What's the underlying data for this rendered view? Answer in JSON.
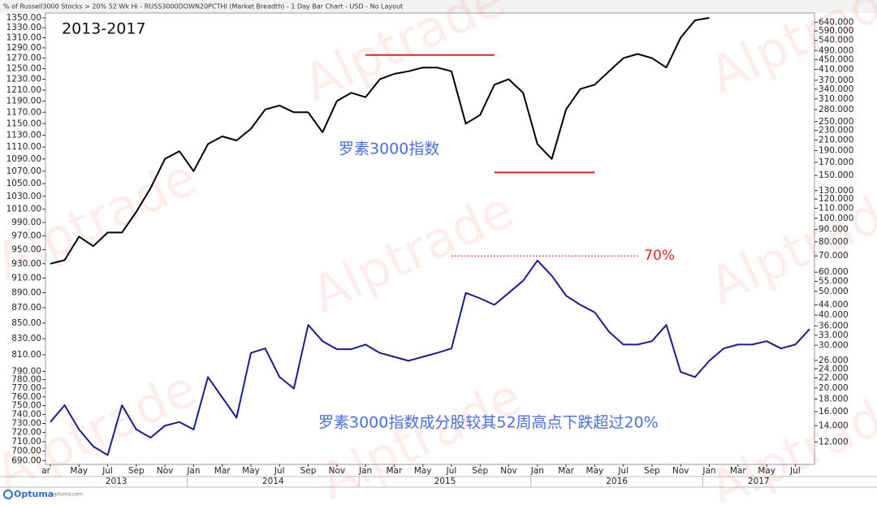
{
  "header": "% of Russell3000 Stocks > 20% 52 Wk Hi - RUSS3000DOWN20PCTHI (Market Breadth) - 1 Day Bar Chart - USD - No Layout",
  "watermark": "Alptrade",
  "footer": {
    "brand": "Optuma",
    "site": "optuma.com"
  },
  "chart_data": {
    "type": "line",
    "period_label": "2013-2017",
    "annotations": [
      "罗素3000指数",
      "罗素3000指数成分股较其52周高点下跌超过20%"
    ],
    "reference_lines": [
      {
        "axis": "y",
        "value": 1276,
        "from": "2015-01",
        "to": "2015-10",
        "color": "#e8201c"
      },
      {
        "axis": "y",
        "value": 1068,
        "from": "2015-10",
        "to": "2016-05",
        "color": "#e8201c"
      },
      {
        "axis": "y2",
        "value": 70,
        "from": "2015-07",
        "to": "2016-08",
        "color": "#e8201c",
        "label": "70%"
      }
    ],
    "x": [
      "2013-03",
      "2013-04",
      "2013-05",
      "2013-06",
      "2013-07",
      "2013-08",
      "2013-09",
      "2013-10",
      "2013-11",
      "2013-12",
      "2014-01",
      "2014-02",
      "2014-03",
      "2014-04",
      "2014-05",
      "2014-06",
      "2014-07",
      "2014-08",
      "2014-09",
      "2014-10",
      "2014-11",
      "2014-12",
      "2015-01",
      "2015-02",
      "2015-03",
      "2015-04",
      "2015-05",
      "2015-06",
      "2015-07",
      "2015-08",
      "2015-09",
      "2015-10",
      "2015-11",
      "2015-12",
      "2016-01",
      "2016-02",
      "2016-03",
      "2016-04",
      "2016-05",
      "2016-06",
      "2016-07",
      "2016-08",
      "2016-09",
      "2016-10",
      "2016-11",
      "2016-12",
      "2017-01",
      "2017-02",
      "2017-03",
      "2017-04",
      "2017-05",
      "2017-06",
      "2017-07",
      "2017-08"
    ],
    "xlim": [
      "2013-03",
      "2017-08"
    ],
    "xticks": [
      {
        "value": "2013-03",
        "label": "ar"
      },
      {
        "value": "2013-05",
        "label": "May"
      },
      {
        "value": "2013-07",
        "label": "Jul"
      },
      {
        "value": "2013-09",
        "label": "Sep"
      },
      {
        "value": "2013-11",
        "label": "Nov"
      },
      {
        "value": "2014-01",
        "label": "Jan"
      },
      {
        "value": "2014-03",
        "label": "Mar"
      },
      {
        "value": "2014-05",
        "label": "May"
      },
      {
        "value": "2014-07",
        "label": "Jul"
      },
      {
        "value": "2014-09",
        "label": "Sep"
      },
      {
        "value": "2014-11",
        "label": "Nov"
      },
      {
        "value": "2015-01",
        "label": "Jan"
      },
      {
        "value": "2015-03",
        "label": "Mar"
      },
      {
        "value": "2015-05",
        "label": "May"
      },
      {
        "value": "2015-07",
        "label": "Jul"
      },
      {
        "value": "2015-09",
        "label": "Sep"
      },
      {
        "value": "2015-11",
        "label": "Nov"
      },
      {
        "value": "2016-01",
        "label": "Jan"
      },
      {
        "value": "2016-03",
        "label": "Mar"
      },
      {
        "value": "2016-05",
        "label": "May"
      },
      {
        "value": "2016-07",
        "label": "Jul"
      },
      {
        "value": "2016-09",
        "label": "Sep"
      },
      {
        "value": "2016-11",
        "label": "Nov"
      },
      {
        "value": "2017-01",
        "label": "Jan"
      },
      {
        "value": "2017-03",
        "label": "Mar"
      },
      {
        "value": "2017-05",
        "label": "May"
      },
      {
        "value": "2017-07",
        "label": "Jul"
      }
    ],
    "years": [
      "2013",
      "2014",
      "2015",
      "2016",
      "2017"
    ],
    "log_scale": true,
    "ylim": [
      686,
      1360
    ],
    "yticks": [
      {
        "value": 690,
        "label": "690.00"
      },
      {
        "value": 700,
        "label": "700.00"
      },
      {
        "value": 710,
        "label": "710.00"
      },
      {
        "value": 720,
        "label": "720.00"
      },
      {
        "value": 730,
        "label": "730.00"
      },
      {
        "value": 740,
        "label": "740.00"
      },
      {
        "value": 750,
        "label": "750.00"
      },
      {
        "value": 760,
        "label": "760.00"
      },
      {
        "value": 770,
        "label": "770.00"
      },
      {
        "value": 780,
        "label": "780.00"
      },
      {
        "value": 790,
        "label": "790.00"
      },
      {
        "value": 810,
        "label": "810.00"
      },
      {
        "value": 830,
        "label": "830.00"
      },
      {
        "value": 850,
        "label": "850.00"
      },
      {
        "value": 870,
        "label": "870.00"
      },
      {
        "value": 890,
        "label": "890.00"
      },
      {
        "value": 910,
        "label": "910.00"
      },
      {
        "value": 930,
        "label": "930.00"
      },
      {
        "value": 950,
        "label": "950.00"
      },
      {
        "value": 970,
        "label": "970.00"
      },
      {
        "value": 990,
        "label": "990.00"
      },
      {
        "value": 1010,
        "label": "1010.00"
      },
      {
        "value": 1030,
        "label": "1030.00"
      },
      {
        "value": 1050,
        "label": "1050.00"
      },
      {
        "value": 1070,
        "label": "1070.00"
      },
      {
        "value": 1090,
        "label": "1090.00"
      },
      {
        "value": 1110,
        "label": "1110.00"
      },
      {
        "value": 1130,
        "label": "1130.00"
      },
      {
        "value": 1150,
        "label": "1150.00"
      },
      {
        "value": 1170,
        "label": "1170.00"
      },
      {
        "value": 1190,
        "label": "1190.00"
      },
      {
        "value": 1210,
        "label": "1210.00"
      },
      {
        "value": 1230,
        "label": "1230.00"
      },
      {
        "value": 1250,
        "label": "1250.00"
      },
      {
        "value": 1270,
        "label": "1270.00"
      },
      {
        "value": 1290,
        "label": "1290.00"
      },
      {
        "value": 1310,
        "label": "1310.00"
      },
      {
        "value": 1330,
        "label": "1330.00"
      },
      {
        "value": 1350,
        "label": "1350.00"
      }
    ],
    "y2lim": [
      9.7,
      700
    ],
    "y2ticks": [
      {
        "value": 12,
        "label": "12.000"
      },
      {
        "value": 14,
        "label": "14.000"
      },
      {
        "value": 16,
        "label": "16.000"
      },
      {
        "value": 18,
        "label": "18.000"
      },
      {
        "value": 20,
        "label": "20.000"
      },
      {
        "value": 22,
        "label": "22.000"
      },
      {
        "value": 24,
        "label": "24.000"
      },
      {
        "value": 26,
        "label": "26.000"
      },
      {
        "value": 30,
        "label": "30.000"
      },
      {
        "value": 33,
        "label": "33.000"
      },
      {
        "value": 36,
        "label": "36.000"
      },
      {
        "value": 40,
        "label": "40.000"
      },
      {
        "value": 44,
        "label": "44.000"
      },
      {
        "value": 50,
        "label": "50.000"
      },
      {
        "value": 55,
        "label": "55.000"
      },
      {
        "value": 60,
        "label": "60.000"
      },
      {
        "value": 70,
        "label": "70.000"
      },
      {
        "value": 80,
        "label": "80.000"
      },
      {
        "value": 90,
        "label": "90.000"
      },
      {
        "value": 100,
        "label": "100.000"
      },
      {
        "value": 110,
        "label": "110.000"
      },
      {
        "value": 120,
        "label": "120.000"
      },
      {
        "value": 130,
        "label": "130.000"
      },
      {
        "value": 150,
        "label": "150.000"
      },
      {
        "value": 170,
        "label": "170.000"
      },
      {
        "value": 190,
        "label": "190.000"
      },
      {
        "value": 210,
        "label": "210.000"
      },
      {
        "value": 230,
        "label": "230.000"
      },
      {
        "value": 250,
        "label": "250.000"
      },
      {
        "value": 280,
        "label": "280.000"
      },
      {
        "value": 310,
        "label": "310.000"
      },
      {
        "value": 340,
        "label": "340.000"
      },
      {
        "value": 370,
        "label": "370.000"
      },
      {
        "value": 410,
        "label": "410.000"
      },
      {
        "value": 450,
        "label": "450.000"
      },
      {
        "value": 490,
        "label": "490.000"
      },
      {
        "value": 540,
        "label": "540.000"
      },
      {
        "value": 590,
        "label": "590.000"
      },
      {
        "value": 640,
        "label": "640.000"
      }
    ],
    "series": [
      {
        "color": "#000000",
        "axis": "y",
        "values": [
          930,
          935,
          969,
          955,
          975,
          975,
          1006,
          1043,
          1090,
          1103,
          1070,
          1115,
          1128,
          1121,
          1141,
          1175,
          1182,
          1170,
          1170,
          1135,
          1190,
          1205,
          1197,
          1230,
          1240,
          1245,
          1252,
          1252,
          1245,
          1150,
          1165,
          1220,
          1230,
          1205,
          1115,
          1090,
          1175,
          1212,
          1220,
          1245,
          1270,
          1278,
          1270,
          1252,
          1310,
          1345,
          1350,
          null,
          null,
          null,
          null,
          null,
          null,
          null
        ]
      },
      {
        "color": "#1c1c86",
        "axis": "y2",
        "values": [
          14.5,
          17,
          13.5,
          11.5,
          10.6,
          17,
          13.5,
          12.5,
          14,
          14.5,
          13.5,
          22.2,
          18.3,
          15.1,
          27.9,
          29.1,
          22.2,
          19.9,
          36.4,
          31.2,
          28.9,
          28.9,
          30.2,
          27.9,
          26.9,
          25.9,
          26.9,
          27.9,
          29.1,
          49.3,
          46.8,
          44,
          49.3,
          55.3,
          67,
          58,
          48,
          44,
          41,
          34.1,
          30.2,
          30.2,
          31.2,
          36.4,
          23.3,
          22.2,
          25.9,
          29.1,
          30.2,
          30.2,
          31.2,
          29.1,
          30.2,
          35
        ]
      }
    ]
  }
}
